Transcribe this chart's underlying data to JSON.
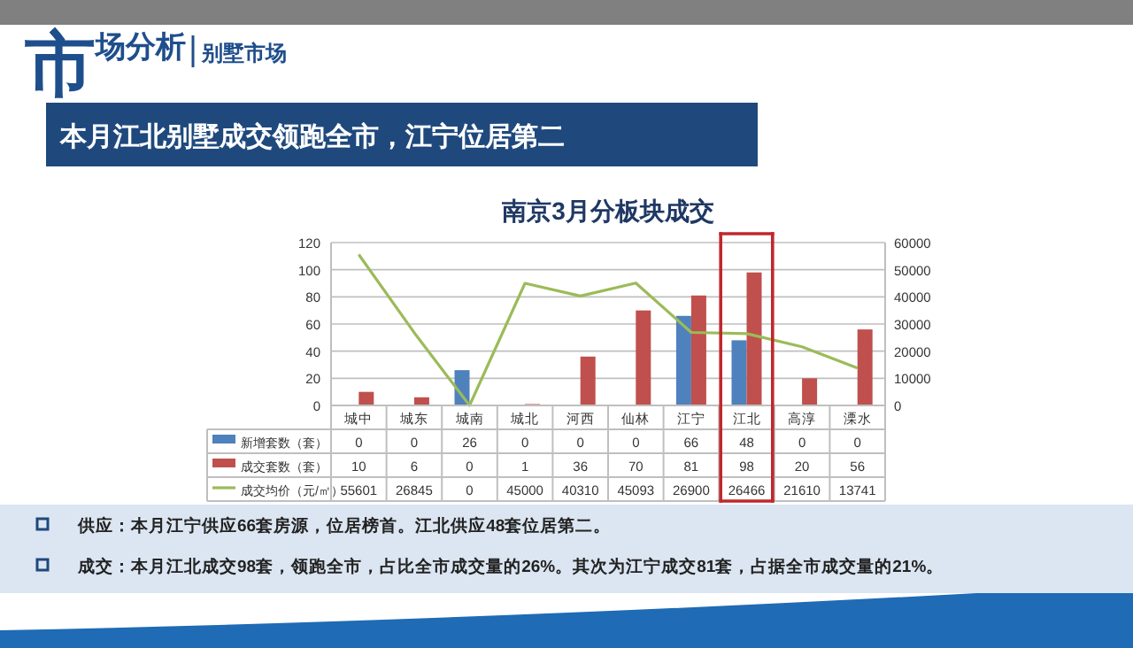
{
  "chart_data": {
    "type": "bar",
    "title": "南京3月分板块成交",
    "categories": [
      "城中",
      "城东",
      "城南",
      "城北",
      "河西",
      "仙林",
      "江宁",
      "江北",
      "高淳",
      "溧水"
    ],
    "series": [
      {
        "name": "新增套数（套）",
        "color": "#4f81bd",
        "values": [
          0,
          0,
          26,
          0,
          0,
          0,
          66,
          48,
          0,
          0
        ]
      },
      {
        "name": "成交套数（套）",
        "color": "#c0504d",
        "values": [
          10,
          6,
          0,
          1,
          36,
          70,
          81,
          98,
          20,
          56
        ]
      },
      {
        "name": "成交均价（元/㎡）",
        "type": "line",
        "axis": "y2",
        "color": "#9bbb59",
        "values": [
          55601,
          26845,
          0,
          45000,
          40310,
          45093,
          26900,
          26466,
          21610,
          13741
        ]
      }
    ],
    "ylim": [
      0,
      120
    ],
    "yticks": [
      0,
      20,
      40,
      60,
      80,
      100,
      120
    ],
    "y2lim": [
      0,
      60000
    ],
    "y2ticks": [
      0,
      10000,
      20000,
      30000,
      40000,
      50000,
      60000
    ],
    "grid": "y",
    "legend": "bottom",
    "data_labels": true,
    "line_style": "solid",
    "annotations": [
      "市场分析",
      "别墅市场",
      "本月江北别墅成交领跑全市，江宁位居第二",
      "供应：本月江宁供应66套房源，位居榜首。江北供应48套位居第二。",
      "成交：本月江北成交98套，领跑全市，占比全市成交量的26%。其次为江宁成交81套，占据全市成交量的21%。"
    ]
  }
}
